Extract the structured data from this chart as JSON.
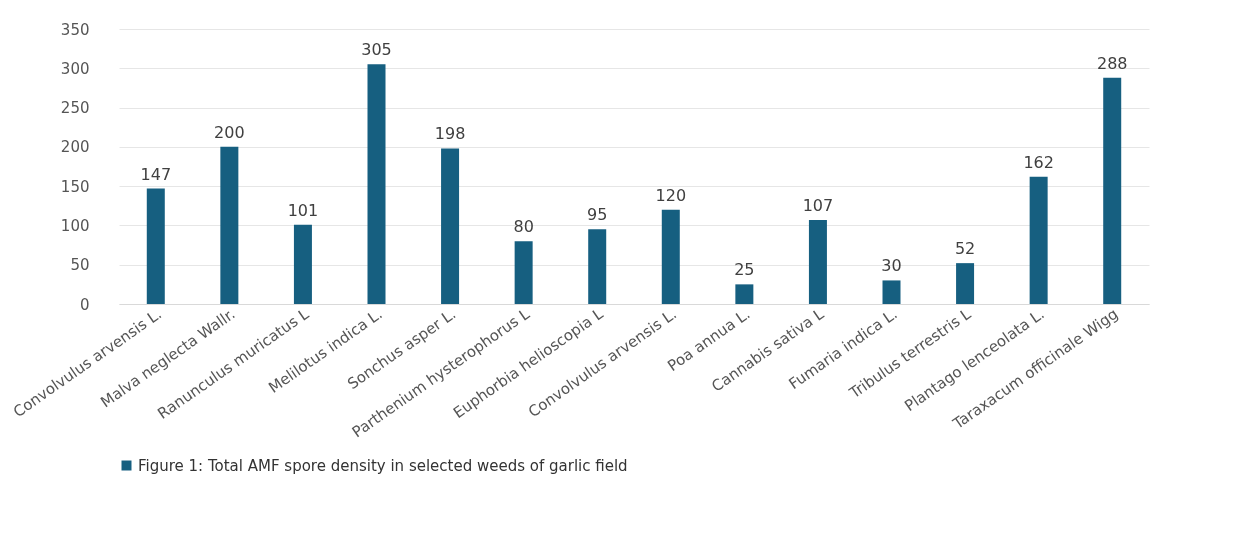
{
  "chart_data": {
    "type": "bar",
    "categories": [
      "Convolvulus arvensis L.",
      "Malva neglecta Wallr.",
      "Ranunculus muricatus L",
      "Melilotus indica L.",
      "Sonchus asper L.",
      "Parthenium hysterophorus L",
      "Euphorbia helioscopia L",
      "Convolvulus arvensis L.",
      "Poa annua L.",
      "Cannabis sativa L",
      "Fumaria indica L.",
      "Tribulus terrestris L",
      "Plantago lenceolata L.",
      "Taraxacum officinale Wigg"
    ],
    "series": [
      {
        "name": "Figure 1: Total AMF spore density in selected weeds of garlic field",
        "color": "#165f80",
        "values": [
          147,
          200,
          101,
          305,
          198,
          80,
          95,
          120,
          25,
          107,
          30,
          52,
          162,
          288
        ]
      }
    ],
    "ylim": [
      0,
      350
    ],
    "yticks": [
      0,
      50,
      100,
      150,
      200,
      250,
      300,
      350
    ],
    "grid": "y",
    "legend": "bottom",
    "data_labels": true
  }
}
